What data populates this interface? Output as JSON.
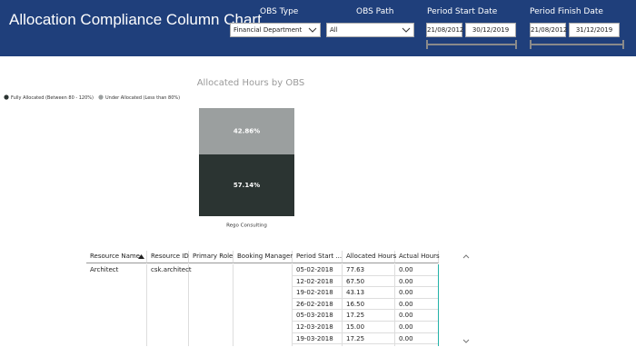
{
  "header": {
    "title": "Allocation Compliance Column Chart"
  },
  "filters": {
    "obs_type": {
      "label": "OBS Type",
      "value": "Financial Department"
    },
    "obs_path": {
      "label": "OBS Path",
      "value": "All"
    },
    "period_start": {
      "label": "Period Start Date",
      "from": "21/08/2012",
      "to": "30/12/2019"
    },
    "period_finish": {
      "label": "Period Finish Date",
      "from": "21/08/2012",
      "to": "31/12/2019"
    }
  },
  "chart_data": {
    "type": "stacked_column_100",
    "title": "Allocated Hours by OBS",
    "categories": [
      "Rego Consulting"
    ],
    "series": [
      {
        "name": "Fully Allocated (Between 80 - 120%)",
        "color": "#2b3432",
        "values": [
          57.14
        ],
        "value_labels": [
          "57.14%"
        ]
      },
      {
        "name": "Under Allocated (Less than 80%)",
        "color": "#9b9f9f",
        "values": [
          42.86
        ],
        "value_labels": [
          "42.86%"
        ]
      }
    ],
    "legend": "top-left"
  },
  "table": {
    "columns": [
      "Resource Name",
      "Resource ID",
      "Primary Role",
      "Booking Manager",
      "Period Start ...",
      "Allocated Hours",
      "Actual Hours"
    ],
    "rows": [
      {
        "resource_name": "Architect",
        "resource_id": "csk.architect",
        "period_start": "05-02-2018",
        "allocated_hours": "77.63",
        "actual_hours": "0.00"
      },
      {
        "period_start": "12-02-2018",
        "allocated_hours": "67.50",
        "actual_hours": "0.00"
      },
      {
        "period_start": "19-02-2018",
        "allocated_hours": "43.13",
        "actual_hours": "0.00"
      },
      {
        "period_start": "26-02-2018",
        "allocated_hours": "16.50",
        "actual_hours": "0.00"
      },
      {
        "period_start": "05-03-2018",
        "allocated_hours": "17.25",
        "actual_hours": "0.00"
      },
      {
        "period_start": "12-03-2018",
        "allocated_hours": "15.00",
        "actual_hours": "0.00"
      },
      {
        "period_start": "19-03-2018",
        "allocated_hours": "17.25",
        "actual_hours": "0.00"
      }
    ]
  }
}
